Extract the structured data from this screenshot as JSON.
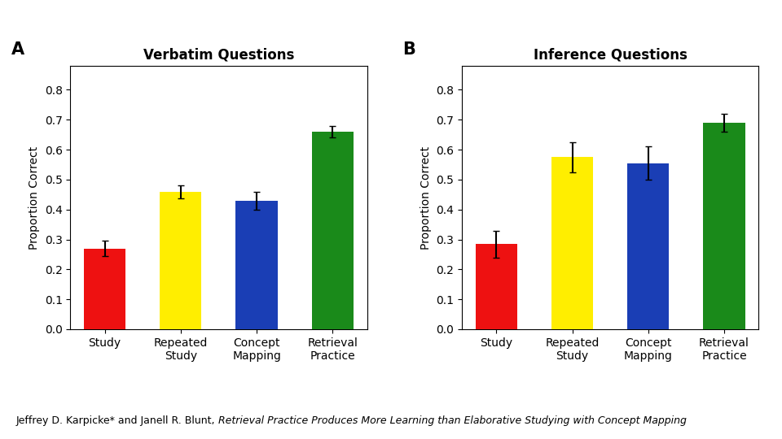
{
  "chart_data": [
    {
      "type": "bar",
      "title": "Verbatim Questions",
      "annotations": [
        "A"
      ],
      "categories": [
        "Study",
        "Repeated\nStudy",
        "Concept\nMapping",
        "Retrieval\nPractice"
      ],
      "values": [
        0.27,
        0.46,
        0.43,
        0.66
      ],
      "errors": [
        0.025,
        0.022,
        0.03,
        0.018
      ],
      "colors": [
        "#ee1111",
        "#ffee00",
        "#1a3eb5",
        "#1a8a1a"
      ],
      "y_label": "Proportion Correct",
      "ylim": [
        0.0,
        0.88
      ],
      "yticks": [
        0.0,
        0.1,
        0.2,
        0.3,
        0.4,
        0.5,
        0.6,
        0.7,
        0.8
      ]
    },
    {
      "type": "bar",
      "title": "Inference Questions",
      "annotations": [
        "B"
      ],
      "categories": [
        "Study",
        "Repeated\nStudy",
        "Concept\nMapping",
        "Retrieval\nPractice"
      ],
      "values": [
        0.285,
        0.575,
        0.555,
        0.69
      ],
      "errors": [
        0.045,
        0.05,
        0.055,
        0.03
      ],
      "colors": [
        "#ee1111",
        "#ffee00",
        "#1a3eb5",
        "#1a8a1a"
      ],
      "y_label": "Proportion Correct",
      "ylim": [
        0.0,
        0.88
      ],
      "yticks": [
        0.0,
        0.1,
        0.2,
        0.3,
        0.4,
        0.5,
        0.6,
        0.7,
        0.8
      ]
    }
  ],
  "annotations": [
    "Jeffrey D. Karpicke* and Janell R. Blunt, ",
    "Retrieval Practice Produces More Learning than Elaborative Studying with Concept Mapping"
  ]
}
